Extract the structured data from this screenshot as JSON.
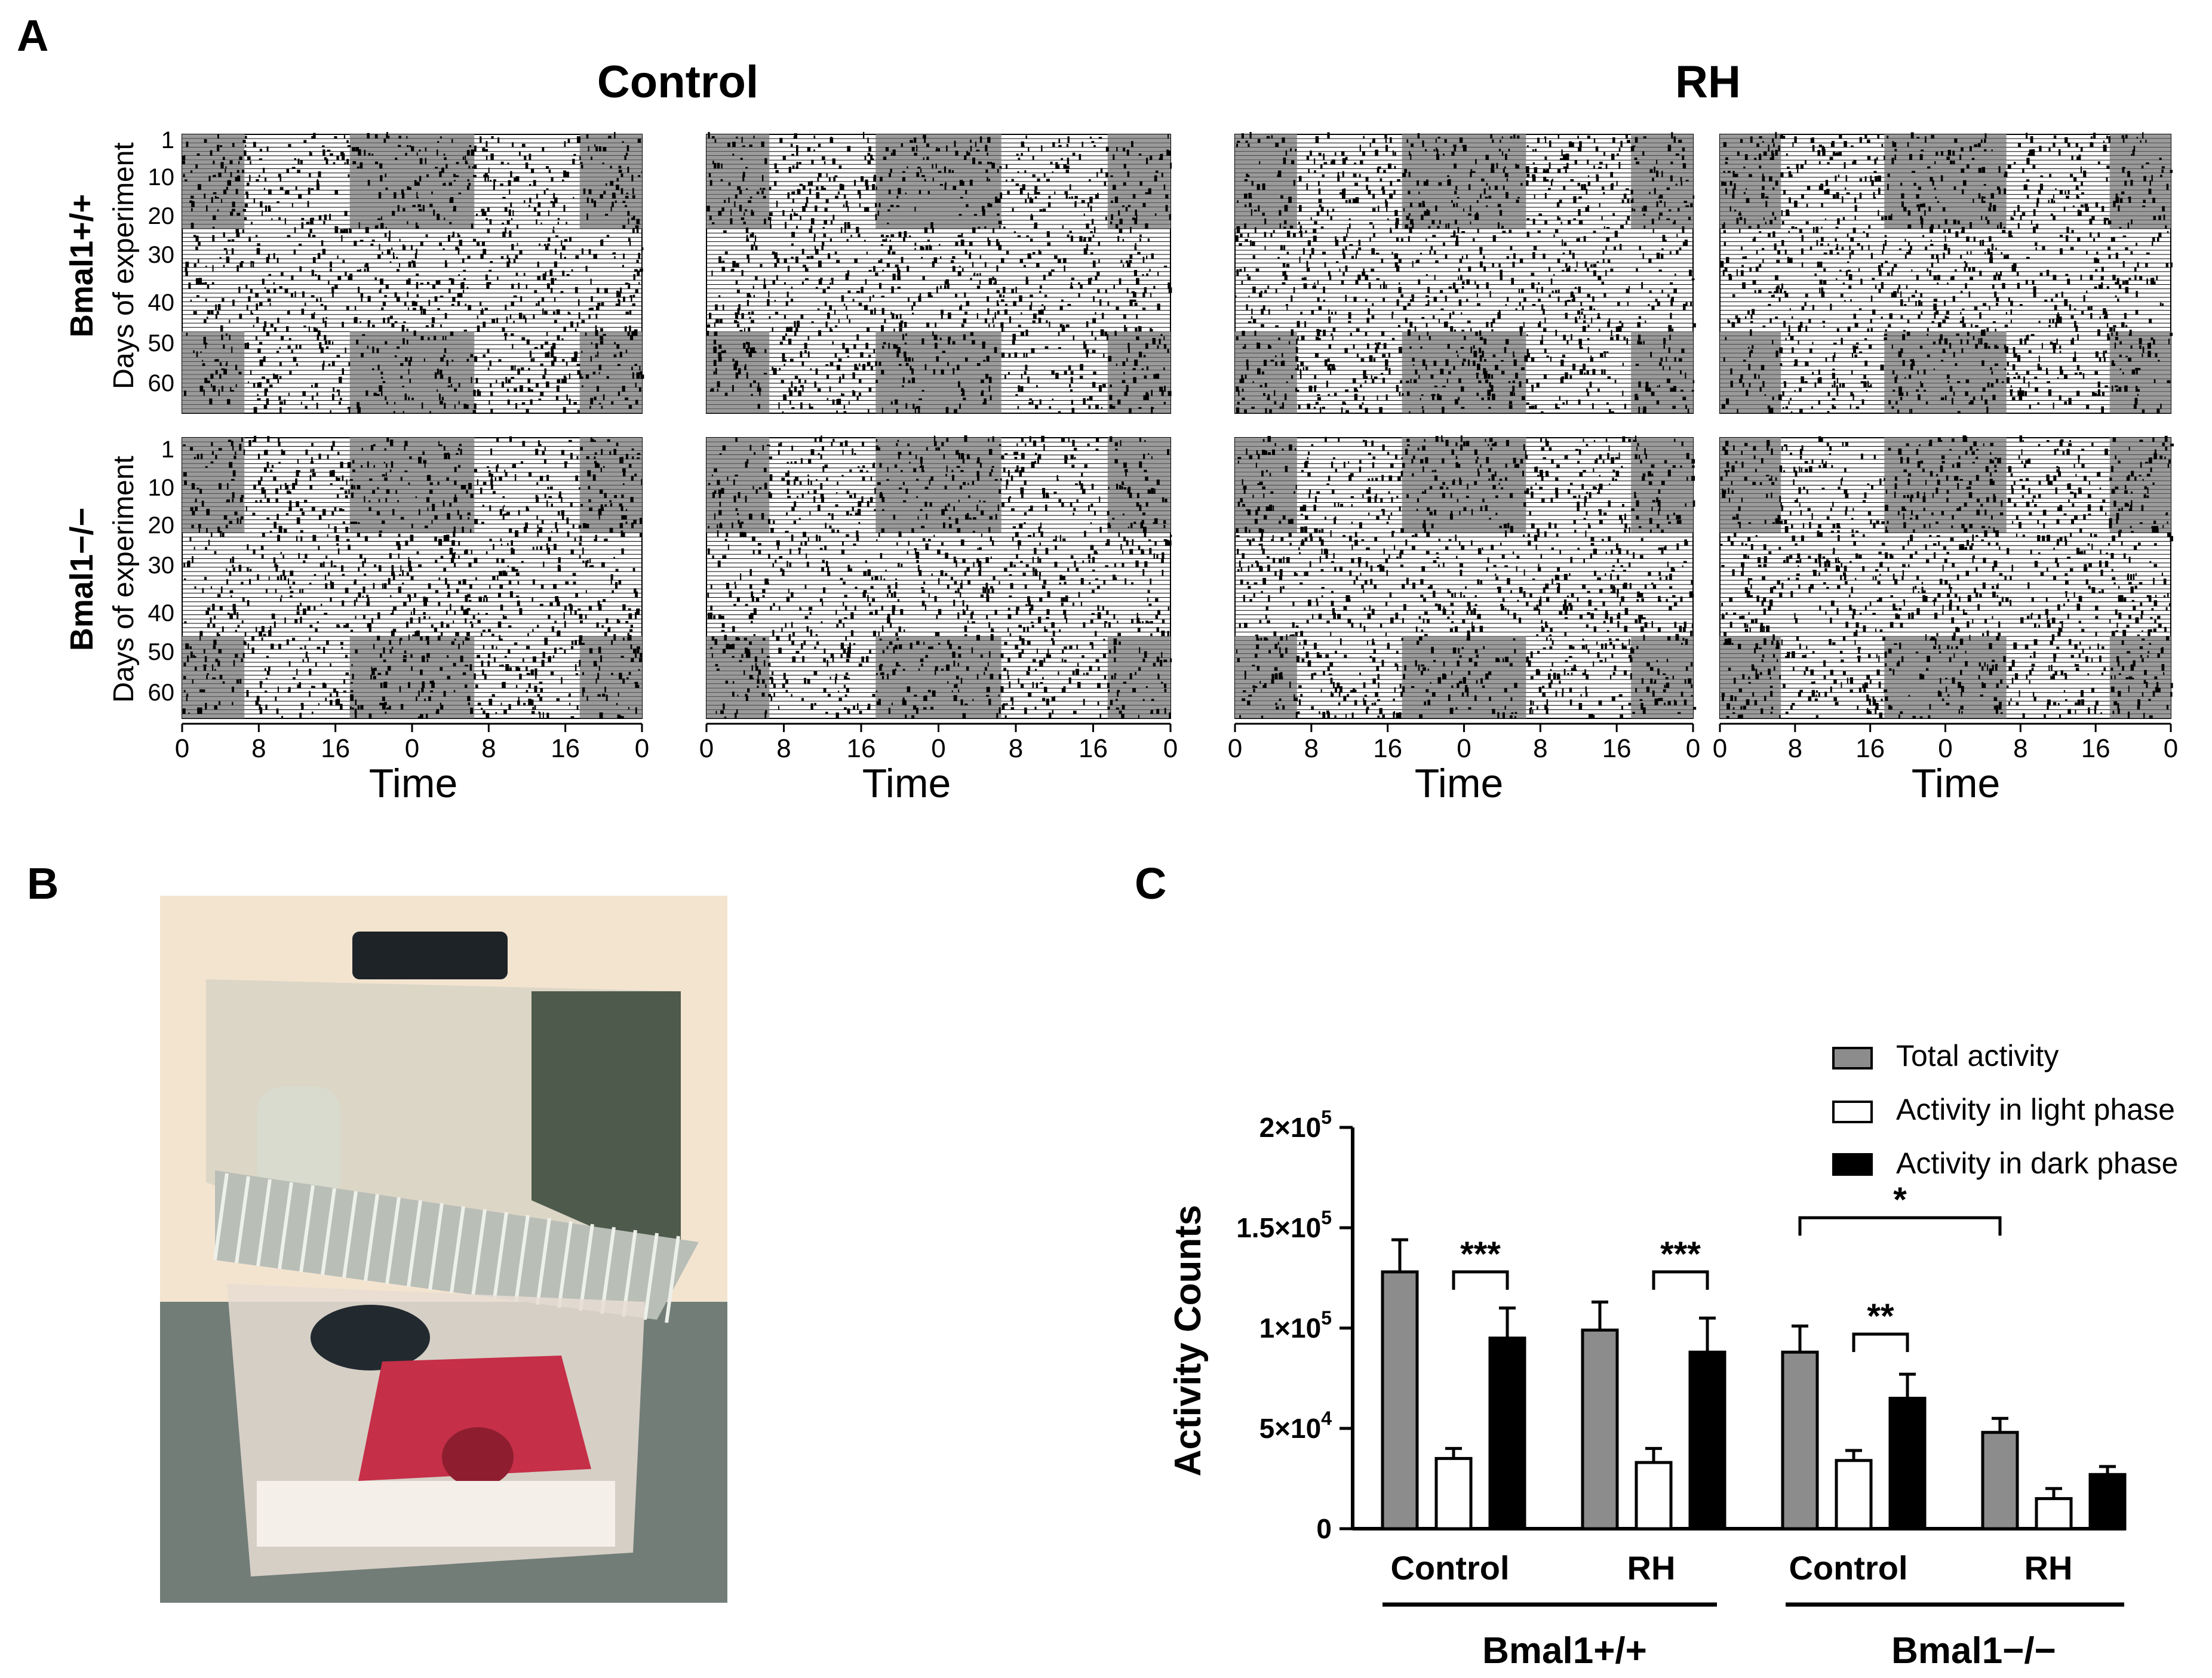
{
  "panels": {
    "A": "A",
    "B": "B",
    "C": "C"
  },
  "actograms": {
    "group_titles": [
      "Control",
      "RH"
    ],
    "row_labels": [
      "Bmal1+/+",
      "Bmal1−/−"
    ],
    "y_axis_label": "Days of experiment",
    "x_axis_label": "Time",
    "day_ticks": [
      "1",
      "10",
      "20",
      "30",
      "40",
      "50",
      "60"
    ],
    "time_ticks": [
      "0",
      "8",
      "16",
      "0",
      "8",
      "16",
      "0"
    ],
    "light_dark_schedule": {
      "before_day": 22,
      "after_day": 45,
      "dark_hours_start": [
        0,
        24
      ],
      "dark_hours_end": [
        6,
        35
      ]
    }
  },
  "photo": {
    "description_icon": "mouse-cage-photo",
    "colors": {
      "wall": "#f2e3cf",
      "floor": "#6f7a74",
      "hut": "#c63045",
      "metal": "#8a8f84"
    }
  },
  "chart_data": {
    "type": "bar",
    "categories": [
      "Control",
      "RH",
      "Control",
      "RH"
    ],
    "groups": [
      "Bmal1+/+",
      "Bmal1−/−"
    ],
    "series": [
      {
        "name": "Total activity",
        "color": "#8c8c8c",
        "values": [
          128000,
          99000,
          88000,
          48000
        ],
        "errors": [
          16000,
          14000,
          13000,
          7000
        ]
      },
      {
        "name": "Activity in light phase",
        "color": "#ffffff",
        "values": [
          35000,
          33000,
          34000,
          15000
        ],
        "errors": [
          5000,
          7000,
          5000,
          5000
        ]
      },
      {
        "name": "Activity in dark phase",
        "color": "#000000",
        "values": [
          95000,
          88000,
          65000,
          27000
        ],
        "errors": [
          15000,
          17000,
          12000,
          4000
        ]
      }
    ],
    "ylabel": "Activity Counts",
    "ylim": [
      0,
      200000
    ],
    "y_ticks": [
      {
        "value": 0,
        "label": "0"
      },
      {
        "value": 50000,
        "mant": "5",
        "exp": "4"
      },
      {
        "value": 100000,
        "mant": "1",
        "exp": "5"
      },
      {
        "value": 150000,
        "mant": "1.5",
        "exp": "5"
      },
      {
        "value": 200000,
        "mant": "2",
        "exp": "5"
      }
    ],
    "significance": [
      {
        "label": "***",
        "from": "Bmal1+/+ Control light",
        "to": "Bmal1+/+ Control dark"
      },
      {
        "label": "***",
        "from": "Bmal1+/+ RH light",
        "to": "Bmal1+/+ RH dark"
      },
      {
        "label": "**",
        "from": "Bmal1−/− Control light",
        "to": "Bmal1−/− Control dark"
      },
      {
        "label": "*",
        "from": "Bmal1−/− Control total",
        "to": "Bmal1−/− RH total"
      }
    ],
    "legend_position": "top-right"
  }
}
